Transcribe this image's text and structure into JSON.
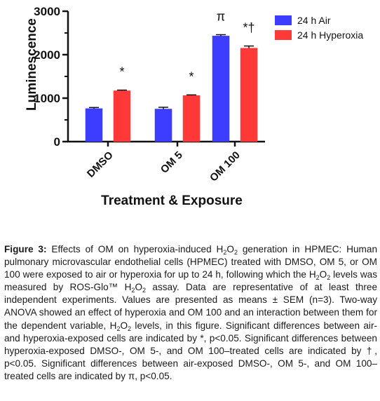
{
  "chart_data": {
    "type": "bar",
    "categories": [
      "DMSO",
      "OM 5",
      "OM 100"
    ],
    "xlabel": "Treatment & Exposure",
    "ylabel": "Luminescence",
    "ylim": [
      0,
      3000
    ],
    "yticks": [
      0,
      1000,
      2000,
      3000
    ],
    "ytick_labels": [
      "0",
      "1000",
      "2000",
      "3000"
    ],
    "grid": false,
    "legend_position": "top-right",
    "series": [
      {
        "name": "24 h Air",
        "color": "#3d3dff",
        "values": [
          760,
          750,
          2430
        ],
        "errors": [
          25,
          40,
          30
        ]
      },
      {
        "name": "24 h Hyperoxia",
        "color": "#ff3838",
        "values": [
          1170,
          1060,
          2150
        ],
        "errors": [
          15,
          15,
          50
        ]
      }
    ],
    "annotations": [
      {
        "category": "DMSO",
        "series": "24 h Hyperoxia",
        "text": "*"
      },
      {
        "category": "OM 5",
        "series": "24 h Hyperoxia",
        "text": "*"
      },
      {
        "category": "OM 100",
        "series": "24 h Air",
        "text": "π"
      },
      {
        "category": "OM 100",
        "series": "24 h Hyperoxia",
        "text": "*†"
      }
    ]
  },
  "caption": {
    "label": "Figure 3:",
    "seg1": " Effects of OM on hyperoxia-induced H",
    "sub1": "2",
    "seg2": "O",
    "sub2": "2",
    "seg3": " generation in HPMEC: Human pulmonary microvascular endothelial cells (HPMEC) treated with DMSO, OM 5, or OM 100 were exposed to air or hyperoxia for up to 24 h, following which the H",
    "sub3": "2",
    "seg4": "O",
    "sub4": "2",
    "seg5": " levels was measured by ROS-Glo™ H",
    "sub5": "2",
    "seg6": "O",
    "sub6": "2",
    "seg7": " assay. Data are representative of at least three independent experiments. Values are presented as means ± SEM (n=3). Two-way ANOVA showed an effect of hyperoxia and OM 100 and an interaction between them for the dependent variable, H",
    "sub7": "2",
    "seg8": "O",
    "sub8": "2",
    "seg9": " levels, in this figure. Significant differences between air- and hyperoxia-exposed cells are indicated by *, p<0.05. Significant differences between hyperoxia-exposed DMSO-, OM 5-, and OM 100–treated cells are indicated by †, p<0.05. Significant differences between air-exposed DMSO-, OM 5-, and OM 100–treated cells are indicated by π, p<0.05."
  }
}
